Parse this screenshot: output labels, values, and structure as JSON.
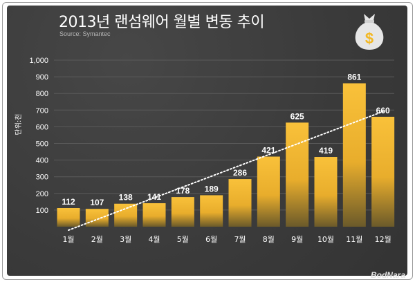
{
  "header": {
    "title": "2013년 랜섬웨어 월별 변동 추이",
    "source": "Source: Symantec"
  },
  "brand": "BodNara",
  "icon": "money-bag-icon",
  "colors": {
    "bar_top": "#f7bc30",
    "bar_bottom": "#6b5a2a",
    "background": "#3d3d3d"
  },
  "chart_data": {
    "type": "bar",
    "title": "2013년 랜섬웨어 월별 변동 추이",
    "ylabel": "단위:천",
    "xlabel": "",
    "categories": [
      "1월",
      "2월",
      "3월",
      "4월",
      "5월",
      "6월",
      "7월",
      "8월",
      "9월",
      "10월",
      "11월",
      "12월"
    ],
    "values": [
      112,
      107,
      138,
      141,
      178,
      189,
      286,
      421,
      625,
      419,
      861,
      660
    ],
    "value_labels": [
      "112",
      "107",
      "138",
      "141",
      "178",
      "189",
      "286",
      "421",
      "625",
      "419",
      "861",
      "660"
    ],
    "ylim": [
      0,
      1000
    ],
    "yticks": [
      100,
      200,
      300,
      400,
      500,
      600,
      700,
      800,
      900,
      1000
    ],
    "ytick_labels": [
      "100",
      "200",
      "300",
      "400",
      "500",
      "600",
      "700",
      "800",
      "900",
      "1,000"
    ],
    "grid": true,
    "trendline": "dotted linear"
  }
}
